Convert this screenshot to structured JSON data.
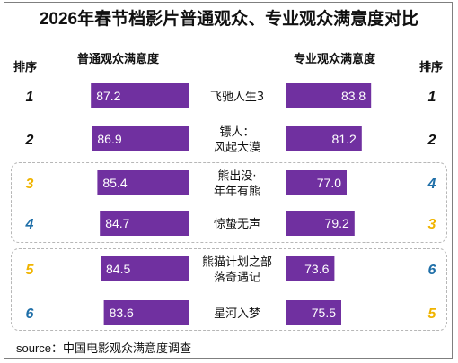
{
  "title": "2026年春节档影片普通观众、专业观众满意度对比",
  "headers": {
    "rank_left": "排序",
    "general": "普通观众满意度",
    "professional": "专业观众满意度",
    "rank_right": "排序"
  },
  "source": "source：中国电影观众满意度调查",
  "colors": {
    "bar": "#7030a0",
    "rank_black": "#111111",
    "rank_yellow": "#f0b400",
    "rank_blue": "#1f6fa8"
  },
  "chart_data": {
    "type": "bar",
    "title": "2026年春节档影片普通观众、专业观众满意度对比",
    "categories": [
      [
        "飞驰人生3"
      ],
      [
        "镖人：",
        "风起大漠"
      ],
      [
        "熊出没·",
        "年年有熊"
      ],
      [
        "惊蛰无声"
      ],
      [
        "熊猫计划之部",
        "落奇遇记"
      ],
      [
        "星河入梦"
      ]
    ],
    "series": [
      {
        "name": "普通观众满意度",
        "values": [
          87.2,
          86.9,
          85.4,
          84.7,
          84.5,
          83.6
        ],
        "ranks": [
          "1",
          "2",
          "3",
          "4",
          "5",
          "6"
        ]
      },
      {
        "name": "专业观众满意度",
        "values": [
          83.8,
          81.2,
          77.0,
          79.2,
          73.6,
          75.5
        ],
        "ranks": [
          "1",
          "2",
          "4",
          "3",
          "6",
          "5"
        ]
      }
    ],
    "value_labels_general": [
      "87.2",
      "86.9",
      "85.4",
      "84.7",
      "84.5",
      "83.6"
    ],
    "value_labels_professional": [
      "83.8",
      "81.2",
      "77.0",
      "79.2",
      "73.6",
      "75.5"
    ],
    "rank_colors_left": [
      "black",
      "black",
      "yellow",
      "blue",
      "yellow",
      "blue"
    ],
    "rank_colors_right": [
      "black",
      "black",
      "blue",
      "yellow",
      "blue",
      "yellow"
    ],
    "xlim": [
      0,
      100
    ]
  }
}
